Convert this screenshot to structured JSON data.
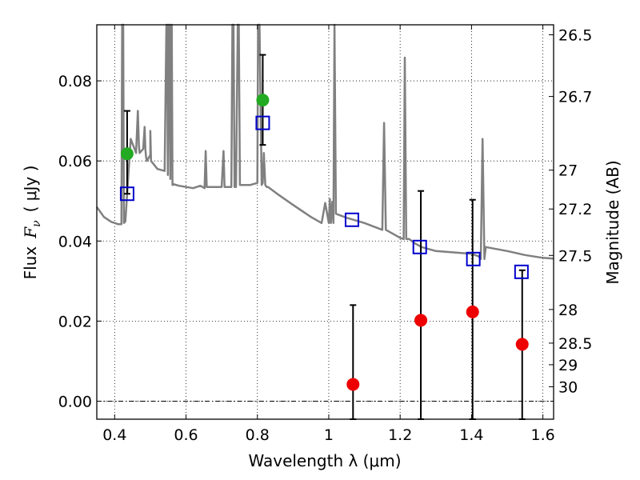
{
  "chart_data": {
    "type": "scatter",
    "title": "",
    "xlabel": "Wavelength  λ (μm)",
    "ylabel_prefix": "Flux",
    "ylabel_math": "F",
    "ylabel_sub": "ν",
    "ylabel_unit": "( μJy )",
    "y2label": "Magnitude (AB)",
    "xlim": [
      0.35,
      1.63
    ],
    "ylim": [
      -0.0045,
      0.094
    ],
    "x_ticks": [
      0.4,
      0.6,
      0.8,
      1.0,
      1.2,
      1.4,
      1.6
    ],
    "x_tick_labels": [
      "0.4",
      "0.6",
      "0.8",
      "1",
      "1.2",
      "1.4",
      "1.6"
    ],
    "y_ticks": [
      0.0,
      0.02,
      0.04,
      0.06,
      0.08
    ],
    "y_tick_labels": [
      "0.00",
      "0.02",
      "0.04",
      "0.06",
      "0.08"
    ],
    "y2_ticks": [
      {
        "label": "26.5",
        "flux": 0.0915
      },
      {
        "label": "26.7",
        "flux": 0.0761
      },
      {
        "label": "27",
        "flux": 0.0577
      },
      {
        "label": "27.2",
        "flux": 0.048
      },
      {
        "label": "27.5",
        "flux": 0.0364
      },
      {
        "label": "28",
        "flux": 0.0229
      },
      {
        "label": "28.5",
        "flux": 0.0145
      },
      {
        "label": "29",
        "flux": 0.0091
      },
      {
        "label": "30",
        "flux": 0.0036
      }
    ],
    "grid": true,
    "series": [
      {
        "kind": "model-spectrum",
        "color": "#808080",
        "x": [
          0.35,
          0.37,
          0.39,
          0.41,
          0.419,
          0.421,
          0.424,
          0.426,
          0.43,
          0.445,
          0.46,
          0.465,
          0.468,
          0.47,
          0.48,
          0.484,
          0.486,
          0.488,
          0.49,
          0.5,
          0.5,
          0.502,
          0.52,
          0.54,
          0.545,
          0.547,
          0.549,
          0.551,
          0.553,
          0.556,
          0.558,
          0.56,
          0.562,
          0.565,
          0.58,
          0.6,
          0.62,
          0.64,
          0.652,
          0.655,
          0.658,
          0.665,
          0.68,
          0.7,
          0.705,
          0.708,
          0.712,
          0.72,
          0.727,
          0.73,
          0.733,
          0.736,
          0.74,
          0.745,
          0.748,
          0.751,
          0.755,
          0.76,
          0.78,
          0.8,
          0.802,
          0.806,
          0.812,
          0.815,
          0.818,
          0.822,
          0.826,
          0.83,
          0.86,
          0.9,
          0.95,
          0.98,
          0.99,
          1.0,
          1.003,
          1.006,
          1.01,
          1.013,
          1.016,
          1.02,
          1.05,
          1.1,
          1.15,
          1.155,
          1.16,
          1.18,
          1.2,
          1.21,
          1.213,
          1.217,
          1.225,
          1.24,
          1.26,
          1.3,
          1.4,
          1.42,
          1.426,
          1.431,
          1.436,
          1.44,
          1.5,
          1.55,
          1.6,
          1.63
        ],
        "y": [
          0.0485,
          0.046,
          0.0448,
          0.0442,
          0.0442,
          0.094,
          0.094,
          0.0445,
          0.0449,
          0.0655,
          0.062,
          0.0725,
          0.064,
          0.062,
          0.063,
          0.0685,
          0.063,
          0.061,
          0.06,
          0.0615,
          0.0675,
          0.06,
          0.058,
          0.0575,
          0.094,
          0.094,
          0.0565,
          0.094,
          0.094,
          0.0555,
          0.094,
          0.094,
          0.054,
          0.0542,
          0.0538,
          0.0535,
          0.0532,
          0.0538,
          0.0532,
          0.0625,
          0.0535,
          0.0535,
          0.0535,
          0.0535,
          0.0625,
          0.0535,
          0.0535,
          0.0535,
          0.0535,
          0.094,
          0.094,
          0.0535,
          0.0535,
          0.094,
          0.094,
          0.054,
          0.054,
          0.054,
          0.054,
          0.0545,
          0.094,
          0.094,
          0.054,
          0.0545,
          0.062,
          0.054,
          0.0535,
          0.0535,
          0.0515,
          0.049,
          0.046,
          0.0445,
          0.0495,
          0.0445,
          0.0505,
          0.0445,
          0.0498,
          0.0445,
          0.094,
          0.0468,
          0.0458,
          0.0445,
          0.0428,
          0.0695,
          0.0428,
          0.0418,
          0.0408,
          0.0405,
          0.0858,
          0.0405,
          0.0405,
          0.0395,
          0.0385,
          0.0375,
          0.0368,
          0.0362,
          0.0355,
          0.0655,
          0.0355,
          0.0385,
          0.0375,
          0.0365,
          0.0358,
          0.0356
        ]
      },
      {
        "kind": "model-photometry",
        "marker": "open-square",
        "color": "#0000cc",
        "x": [
          0.435,
          0.815,
          1.065,
          1.255,
          1.405,
          1.54
        ],
        "y": [
          0.0518,
          0.0695,
          0.0453,
          0.0385,
          0.0355,
          0.0323
        ]
      },
      {
        "kind": "detections",
        "marker": "filled-circle",
        "color": "#22aa22",
        "x": [
          0.435,
          0.815
        ],
        "y": [
          0.0618,
          0.0752
        ],
        "yerr_low": [
          0.0518,
          0.064
        ],
        "yerr_high": [
          0.0725,
          0.0865
        ]
      },
      {
        "kind": "non-detections",
        "marker": "filled-circle",
        "color": "#ee0000",
        "x": [
          1.068,
          1.258,
          1.403,
          1.542
        ],
        "y": [
          0.0042,
          0.0202,
          0.0223,
          0.0142
        ],
        "yerr_low": [
          -0.0045,
          -0.0045,
          -0.0045,
          -0.0045
        ],
        "yerr_high": [
          0.024,
          0.0525,
          0.0503,
          0.0327
        ]
      }
    ]
  }
}
